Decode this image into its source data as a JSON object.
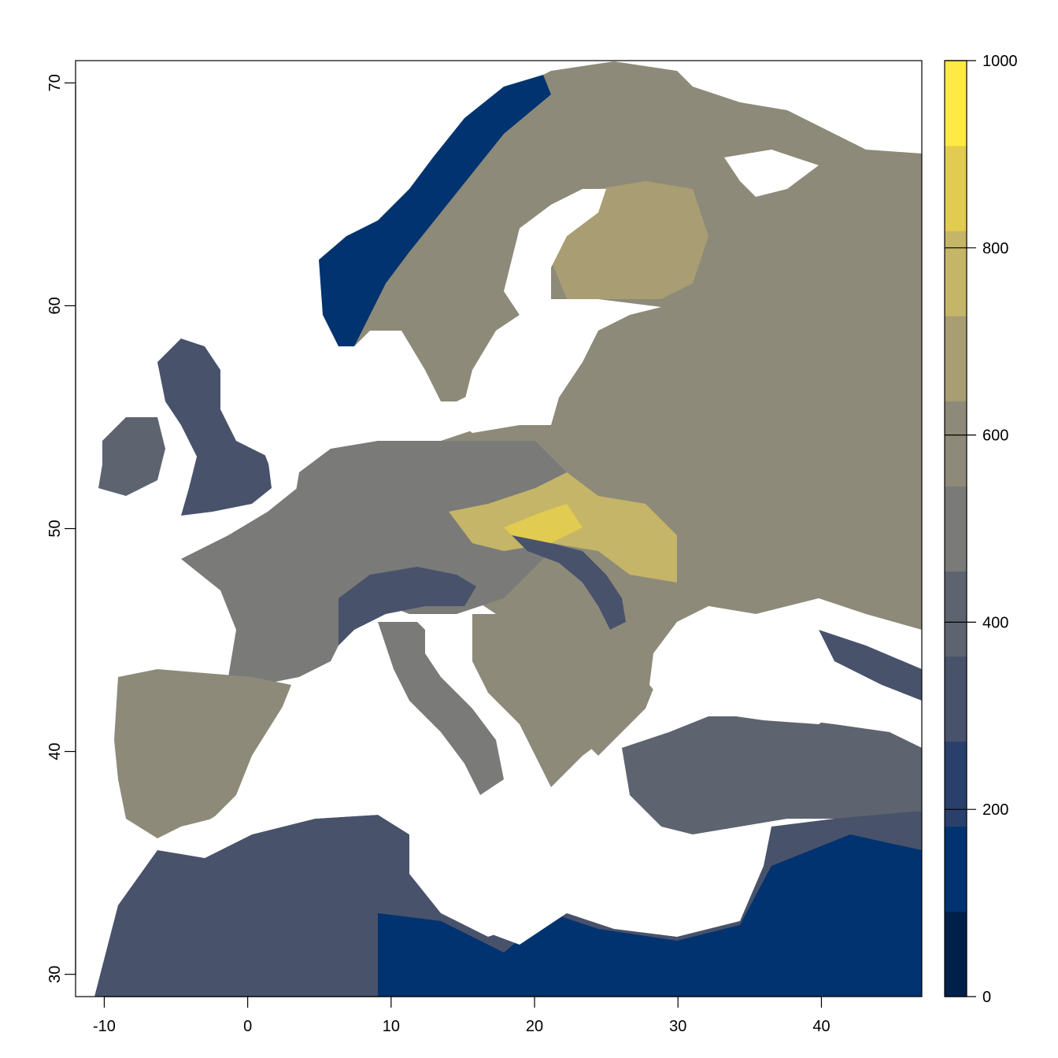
{
  "map": {
    "x_axis": {
      "ticks": [
        {
          "value": -10,
          "label": "-10"
        },
        {
          "value": 0,
          "label": "0"
        },
        {
          "value": 10,
          "label": "10"
        },
        {
          "value": 20,
          "label": "20"
        },
        {
          "value": 30,
          "label": "30"
        },
        {
          "value": 40,
          "label": "40"
        }
      ],
      "range": [
        -12,
        47
      ]
    },
    "y_axis": {
      "ticks": [
        {
          "value": 30,
          "label": "30"
        },
        {
          "value": 40,
          "label": "40"
        },
        {
          "value": 50,
          "label": "50"
        },
        {
          "value": 60,
          "label": "60"
        },
        {
          "value": 70,
          "label": "70"
        }
      ],
      "range": [
        29,
        71
      ]
    }
  },
  "legend": {
    "range": [
      0,
      1000
    ],
    "ticks": [
      {
        "value": 0,
        "label": "0"
      },
      {
        "value": 200,
        "label": "200"
      },
      {
        "value": 400,
        "label": "400"
      },
      {
        "value": 600,
        "label": "600"
      },
      {
        "value": 800,
        "label": "800"
      },
      {
        "value": 1000,
        "label": "1000"
      }
    ],
    "colors": [
      "#00204c",
      "#00336f",
      "#2a406c",
      "#48526b",
      "#5d6470",
      "#7a7a79",
      "#8d8a79",
      "#a89d73",
      "#c5b568",
      "#e1cb50",
      "#ffe945"
    ]
  }
}
